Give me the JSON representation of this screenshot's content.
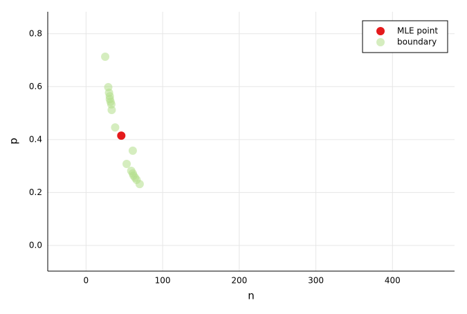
{
  "chart_data": {
    "type": "scatter",
    "xlabel": "n",
    "ylabel": "p",
    "xlim": [
      -50,
      481
    ],
    "ylim": [
      -0.097,
      0.883
    ],
    "xticks": [
      0,
      100,
      200,
      300,
      400
    ],
    "yticks": [
      {
        "value": 0,
        "label": "0.0"
      },
      0.2,
      0.4,
      0.6,
      0.8
    ],
    "grid": true,
    "legend": "top-right",
    "series": [
      {
        "name": "MLE point",
        "color": "#e41a1c",
        "x": [
          46
        ],
        "values": [
          0.415
        ]
      },
      {
        "name": "boundary",
        "color": "#b2df8a",
        "x": [
          25,
          29,
          30,
          31,
          31,
          32,
          33,
          33.5,
          38,
          61,
          53,
          59,
          61,
          62,
          64,
          66,
          70
        ],
        "values": [
          0.713,
          0.598,
          0.577,
          0.564,
          0.553,
          0.543,
          0.533,
          0.512,
          0.446,
          0.358,
          0.308,
          0.282,
          0.272,
          0.264,
          0.256,
          0.248,
          0.232
        ]
      }
    ]
  }
}
